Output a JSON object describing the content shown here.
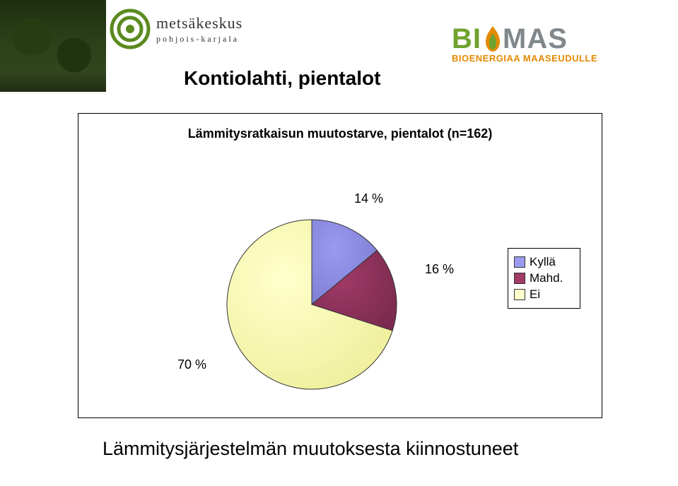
{
  "mk_logo": {
    "name": "metsäkeskus",
    "subtitle": "pohjois-karjala",
    "ring_color": "#5b8a1f",
    "text_color": "#333333"
  },
  "biomas_logo": {
    "bi_text": "BI",
    "mas_text": "MAS",
    "bi_color": "#6fa22e",
    "mas_color": "#81888c",
    "subtitle": "BIOENERGIAA MAASEUDULLE",
    "sub_color": "#e48a00",
    "flame_orange": "#e48a00",
    "flame_green": "#6fa22e"
  },
  "slide_title": "Kontiolahti, pientalot",
  "chart": {
    "type": "pie",
    "title": "Lämmitysratkaisun muutostarve, pientalot (n=162)",
    "slices": [
      {
        "key": "kylla",
        "label": "Kyllä",
        "value": 14,
        "pct_label": "14 %",
        "color": "#9a9af0",
        "gradient_dark": "#7a7cd0"
      },
      {
        "key": "mahd",
        "label": "Mahd.",
        "value": 16,
        "pct_label": "16 %",
        "color": "#a03a66",
        "gradient_dark": "#7a2a4e"
      },
      {
        "key": "ei",
        "label": "Ei",
        "value": 70,
        "pct_label": "70 %",
        "color": "#ffffcc",
        "gradient_dark": "#eeee99"
      }
    ],
    "background_color": "#ffffff",
    "border_color": "#000000",
    "label_fontsize": 18,
    "title_fontsize": 18,
    "stroke_color": "#333333"
  },
  "footer": "Lämmitysjärjestelmän muutoksesta kiinnostuneet"
}
